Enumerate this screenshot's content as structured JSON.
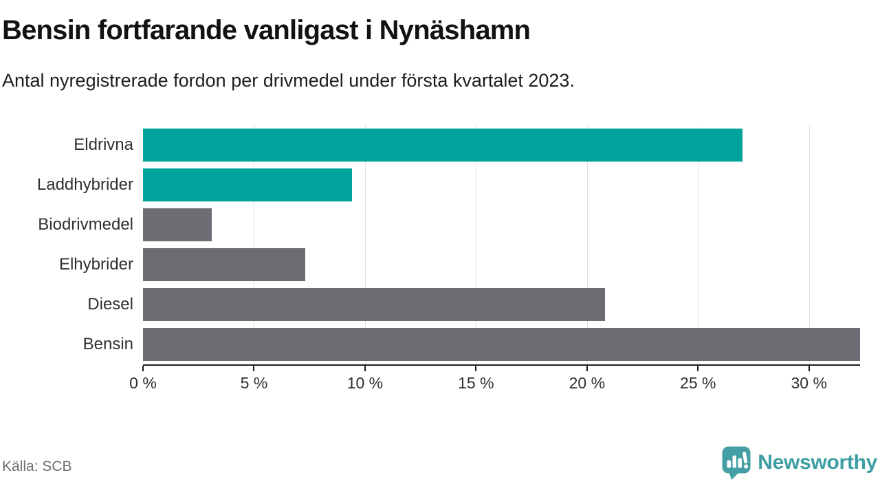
{
  "chart_data": {
    "type": "bar",
    "orientation": "horizontal",
    "title": "Bensin fortfarande vanligast i Nynäshamn",
    "subtitle": "Antal nyregistrerade fordon per drivmedel under första kvartalet 2023.",
    "categories": [
      "Eldrivna",
      "Laddhybrider",
      "Biodrivmedel",
      "Elhybrider",
      "Diesel",
      "Bensin"
    ],
    "values": [
      27.0,
      9.4,
      3.1,
      7.3,
      20.8,
      32.3
    ],
    "unit": "%",
    "bar_colors": [
      "#00a39b",
      "#00a39b",
      "#6c6c72",
      "#6c6c72",
      "#6c6c72",
      "#6c6c72"
    ],
    "xlabel": "",
    "ylabel": "",
    "xlim": [
      0,
      32.3
    ],
    "xticks": [
      0,
      5,
      10,
      15,
      20,
      25,
      30
    ],
    "xtick_labels": [
      "0 %",
      "5 %",
      "10 %",
      "15 %",
      "20 %",
      "25 %",
      "30 %"
    ],
    "grid": "vertical-behind-bars",
    "legend": "none",
    "accent_color": "#00a39b",
    "base_color": "#6c6c72",
    "gridline_color": "#e1e1e4",
    "axis_color": "#1c1c1c"
  },
  "footer": {
    "source": "Källa: SCB",
    "brand": "Newsworthy",
    "brand_color": "#3f9ea3",
    "logo_icon": "newsworthy-speech-bubble-bar-chart-icon"
  }
}
